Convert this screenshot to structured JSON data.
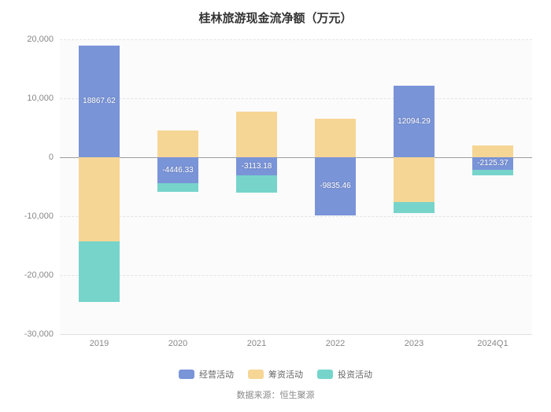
{
  "title": "桂林旅游现金流净额（万元）",
  "source_label": "数据来源：恒生聚源",
  "chart": {
    "type": "stacked-bar",
    "background_color": "#fbfbfb",
    "grid_color": "#e4e4e4",
    "axis_color": "#dcdcdc",
    "zero_line_color": "#9e9e9e",
    "xlabel_color": "#888888",
    "ylabel_color": "#888888",
    "xlim": [
      0,
      6
    ],
    "ylim": [
      -30000,
      20000
    ],
    "yticks": [
      -30000,
      -20000,
      -10000,
      0,
      10000,
      20000
    ],
    "ytick_labels": [
      "-30,000",
      "-20,000",
      "-10,000",
      "0",
      "10,000",
      "20,000"
    ],
    "categories": [
      "2019",
      "2020",
      "2021",
      "2022",
      "2023",
      "2024Q1"
    ],
    "bar_width": 0.52,
    "series": [
      {
        "key": "operating",
        "name": "经营活动",
        "color": "#7a94d8"
      },
      {
        "key": "financing",
        "name": "筹资活动",
        "color": "#f6d695"
      },
      {
        "key": "investing",
        "name": "投资活动",
        "color": "#76d4cb"
      }
    ],
    "data": [
      {
        "category": "2019",
        "operating": 18867.62,
        "financing": -14200,
        "investing": -10300,
        "label_series": "operating",
        "label_value": "18867.62"
      },
      {
        "category": "2020",
        "operating": -4446.33,
        "financing": 4600,
        "investing": -1400,
        "label_series": "operating",
        "label_value": "-4446.33"
      },
      {
        "category": "2021",
        "operating": -3113.18,
        "financing": 7800,
        "investing": -2900,
        "label_series": "operating",
        "label_value": "-3113.18"
      },
      {
        "category": "2022",
        "operating": -9835.46,
        "financing": 6600,
        "investing": 0,
        "label_series": "operating",
        "label_value": "-9835.46"
      },
      {
        "category": "2023",
        "operating": 12094.29,
        "financing": -7600,
        "investing": -1900,
        "label_series": "operating",
        "label_value": "12094.29"
      },
      {
        "category": "2024Q1",
        "operating": -2125.37,
        "financing": 2000,
        "investing": -900,
        "label_series": "operating",
        "label_value": "-2125.37"
      }
    ],
    "legend_position": "bottom",
    "title_fontsize": 15,
    "axis_fontsize": 11,
    "label_fontsize": 10
  }
}
